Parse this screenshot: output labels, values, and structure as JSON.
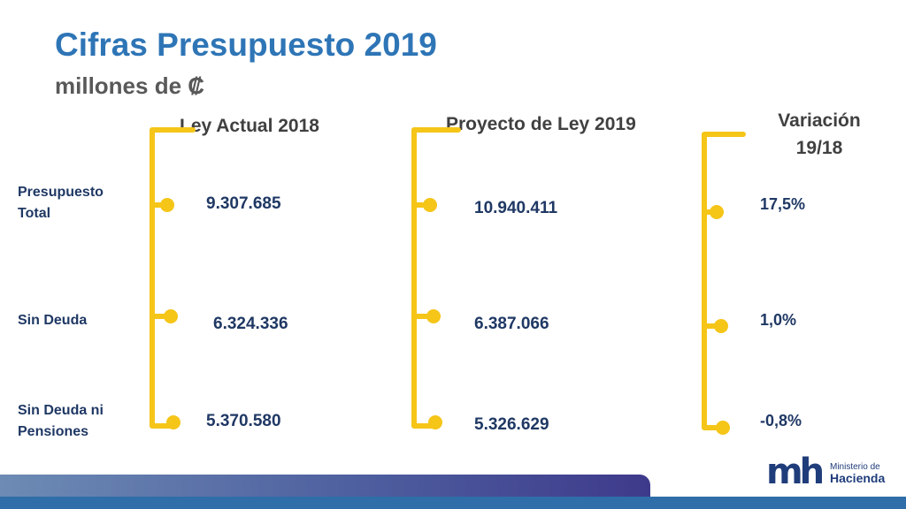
{
  "slide": {
    "title": "Cifras Presupuesto 2019",
    "subtitle": "millones de ₡"
  },
  "columns": [
    {
      "header": "Ley Actual  2018"
    },
    {
      "header": "Proyecto de Ley 2019"
    },
    {
      "header_line1": "Variación",
      "header_line2": "19/18"
    }
  ],
  "rows": [
    {
      "label_line1": "Presupuesto",
      "label_line2": "Total",
      "ley_2018": "9.307.685",
      "proyecto_2019": "10.940.411",
      "variacion": "17,5%"
    },
    {
      "label_line1": "Sin  Deuda",
      "ley_2018": "6.324.336",
      "proyecto_2019": "6.387.066",
      "variacion": "1,0%"
    },
    {
      "label_line1": "Sin  Deuda ni",
      "label_line2": "Pensiones",
      "ley_2018": "5.370.580",
      "proyecto_2019": "5.326.629",
      "variacion": "-0,8%"
    }
  ],
  "logo": {
    "mark": "mh",
    "line1": "Ministerio de",
    "line2": "Hacienda"
  },
  "colors": {
    "title": "#2e75b6",
    "bracket": "#f5c518",
    "values": "#1f3864",
    "footer": "#2f6ea8"
  }
}
